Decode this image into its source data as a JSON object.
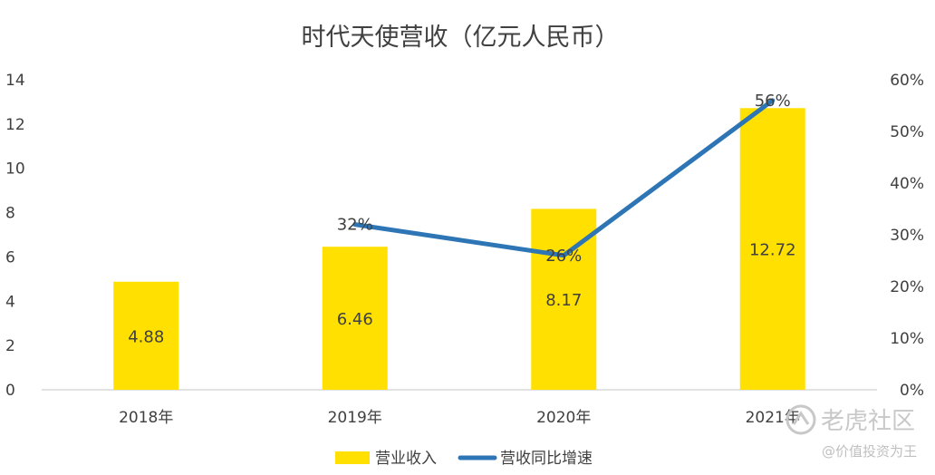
{
  "chart_data": {
    "type": "bar",
    "title": "时代天使营收（亿元人民币）",
    "categories": [
      "2018年",
      "2019年",
      "2020年",
      "2021年"
    ],
    "series": [
      {
        "name": "营业收入",
        "type": "bar",
        "axis": "left",
        "color": "#FFE000",
        "values": [
          4.88,
          6.46,
          8.17,
          12.72
        ],
        "labels": [
          "4.88",
          "6.46",
          "8.17",
          "12.72"
        ]
      },
      {
        "name": "营收同比增速",
        "type": "line",
        "axis": "right",
        "color": "#2E75B6",
        "values": [
          null,
          0.32,
          0.26,
          0.56
        ],
        "labels": [
          "",
          "32%",
          "26%",
          "56%"
        ]
      }
    ],
    "ylim": [
      0,
      14
    ],
    "yticks": [
      "0",
      "2",
      "4",
      "6",
      "8",
      "10",
      "12",
      "14"
    ],
    "y2lim": [
      0,
      0.6
    ],
    "y2ticks": [
      "0%",
      "10%",
      "20%",
      "30%",
      "40%",
      "50%",
      "60%"
    ],
    "grid": false,
    "legend_position": "bottom"
  },
  "watermark": {
    "brand": "老虎社区",
    "author": "@价值投资为王"
  }
}
